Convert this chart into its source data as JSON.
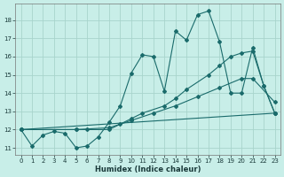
{
  "xlabel": "Humidex (Indice chaleur)",
  "bg_color": "#c8eee8",
  "grid_color": "#a8d4cc",
  "line_color": "#1a6b6b",
  "xlim_min": -0.5,
  "xlim_max": 23.5,
  "ylim_min": 10.6,
  "ylim_max": 18.9,
  "xticks": [
    0,
    1,
    2,
    3,
    4,
    5,
    6,
    7,
    8,
    9,
    10,
    11,
    12,
    13,
    14,
    15,
    16,
    17,
    18,
    19,
    20,
    21,
    22,
    23
  ],
  "yticks": [
    11,
    12,
    13,
    14,
    15,
    16,
    17,
    18
  ],
  "line1_x": [
    0,
    1,
    2,
    3,
    4,
    5,
    6,
    7,
    8,
    9,
    10,
    11,
    12,
    13,
    14,
    15,
    16,
    17,
    18,
    19,
    20,
    21,
    22,
    23
  ],
  "line1_y": [
    12.0,
    11.1,
    11.7,
    11.9,
    11.8,
    11.0,
    11.1,
    11.6,
    12.4,
    13.3,
    15.1,
    16.1,
    16.0,
    14.1,
    17.4,
    16.9,
    18.3,
    18.5,
    16.8,
    14.0,
    14.0,
    16.5,
    14.4,
    12.9
  ],
  "line2_x": [
    0,
    5,
    6,
    8,
    9,
    10,
    11,
    13,
    14,
    15,
    17,
    18,
    19,
    20,
    21,
    22,
    23
  ],
  "line2_y": [
    12.0,
    12.0,
    12.0,
    12.0,
    12.3,
    12.6,
    12.9,
    13.3,
    13.7,
    14.2,
    15.0,
    15.5,
    16.0,
    16.2,
    16.3,
    14.4,
    12.9
  ],
  "line3_x": [
    0,
    5,
    8,
    10,
    12,
    14,
    16,
    18,
    20,
    21,
    23
  ],
  "line3_y": [
    12.0,
    12.0,
    12.1,
    12.5,
    12.9,
    13.3,
    13.8,
    14.3,
    14.8,
    14.8,
    13.5
  ],
  "line4_x": [
    0,
    23
  ],
  "line4_y": [
    12.0,
    12.9
  ]
}
